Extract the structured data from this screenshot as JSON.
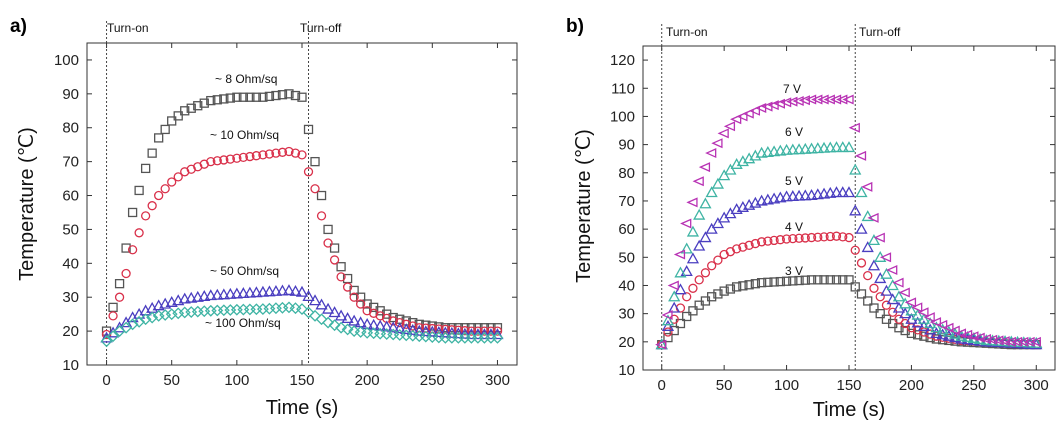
{
  "chart_data": [
    {
      "panel": "a)",
      "type": "scatter",
      "xlabel": "Time (s)",
      "ylabel": "Temperature (℃)",
      "xlim": [
        -15,
        315
      ],
      "ylim": [
        10,
        105
      ],
      "xticks": [
        0,
        50,
        100,
        150,
        200,
        250,
        300
      ],
      "yticks": [
        10,
        20,
        30,
        40,
        50,
        60,
        70,
        80,
        90,
        100
      ],
      "events": [
        {
          "label": "Turn-on",
          "x": 0
        },
        {
          "label": "Turn-off",
          "x": 155
        }
      ],
      "series": [
        {
          "name": "~ 8  Ohm/sq",
          "marker": "square",
          "color": "#555555",
          "x": [
            0,
            10,
            20,
            30,
            40,
            50,
            60,
            80,
            100,
            120,
            140,
            150,
            160,
            170,
            180,
            190,
            200,
            220,
            240,
            260,
            280,
            300
          ],
          "y": [
            20,
            34,
            55,
            68,
            77,
            82,
            85,
            88,
            89,
            89,
            90,
            89,
            70,
            50,
            39,
            32,
            28,
            24,
            22,
            21,
            21,
            21
          ]
        },
        {
          "name": "~ 10 Ohm/sq",
          "marker": "circle",
          "color": "#d9304a",
          "x": [
            0,
            10,
            20,
            30,
            40,
            50,
            60,
            80,
            100,
            120,
            140,
            150,
            160,
            170,
            180,
            190,
            200,
            220,
            240,
            260,
            280,
            300
          ],
          "y": [
            19,
            30,
            44,
            54,
            60,
            64,
            67,
            70,
            71,
            72,
            73,
            72,
            62,
            46,
            36,
            30,
            26,
            23,
            21,
            20.5,
            20,
            20
          ]
        },
        {
          "name": "~ 50 Ohm/sq",
          "marker": "triangle",
          "color": "#4a3ec0",
          "x": [
            0,
            10,
            20,
            30,
            40,
            50,
            60,
            80,
            100,
            120,
            140,
            150,
            160,
            170,
            180,
            190,
            200,
            220,
            240,
            260,
            280,
            300
          ],
          "y": [
            18,
            21,
            24,
            26,
            27.5,
            28.5,
            29.5,
            30.5,
            31,
            31.5,
            32,
            31.5,
            29,
            26.5,
            24.5,
            23,
            22,
            21,
            20,
            19.5,
            19,
            19
          ]
        },
        {
          "name": "~ 100 Ohm/sq",
          "marker": "diamond",
          "color": "#3fb4a4",
          "x": [
            0,
            10,
            20,
            30,
            40,
            50,
            60,
            80,
            100,
            120,
            140,
            150,
            160,
            170,
            180,
            190,
            200,
            220,
            240,
            260,
            280,
            300
          ],
          "y": [
            17,
            20,
            22,
            23.5,
            24.5,
            25,
            25.5,
            26,
            26.3,
            26.5,
            27,
            26.5,
            24.5,
            22.5,
            21,
            20,
            19.5,
            19,
            18.5,
            18,
            18,
            18
          ]
        }
      ]
    },
    {
      "panel": "b)",
      "type": "scatter",
      "xlabel": "Time (s)",
      "ylabel": "Temperature (℃)",
      "xlim": [
        -15,
        315
      ],
      "ylim": [
        10,
        125
      ],
      "xticks": [
        0,
        50,
        100,
        150,
        200,
        250,
        300
      ],
      "yticks": [
        10,
        20,
        30,
        40,
        50,
        60,
        70,
        80,
        90,
        100,
        110,
        120
      ],
      "events": [
        {
          "label": "Turn-on",
          "x": 0
        },
        {
          "label": "Turn-off",
          "x": 155
        }
      ],
      "series": [
        {
          "name": "3 V",
          "marker": "square",
          "color": "#555555",
          "x": [
            0,
            10,
            20,
            30,
            40,
            50,
            60,
            80,
            100,
            120,
            140,
            150,
            160,
            170,
            180,
            190,
            200,
            220,
            240,
            260,
            280,
            300
          ],
          "y": [
            19,
            24,
            29,
            33,
            36,
            38,
            39.5,
            41,
            41.5,
            42,
            42,
            42,
            37,
            32,
            28,
            25,
            23,
            21,
            20,
            19.5,
            19,
            19
          ]
        },
        {
          "name": "4 V",
          "marker": "circle",
          "color": "#d9304a",
          "x": [
            0,
            10,
            20,
            30,
            40,
            50,
            60,
            80,
            100,
            120,
            140,
            150,
            160,
            170,
            180,
            190,
            200,
            220,
            240,
            260,
            280,
            300
          ],
          "y": [
            19,
            28,
            36,
            42,
            47,
            51,
            53,
            55.5,
            56.5,
            57,
            57.5,
            57,
            48,
            39,
            33,
            28,
            25,
            22,
            20.5,
            20,
            19.5,
            19
          ]
        },
        {
          "name": "5 V",
          "marker": "triangle",
          "color": "#4a3ec0",
          "x": [
            0,
            10,
            20,
            30,
            40,
            50,
            60,
            80,
            100,
            120,
            140,
            150,
            160,
            170,
            180,
            190,
            200,
            220,
            240,
            260,
            280,
            300
          ],
          "y": [
            19,
            32,
            45,
            54,
            60,
            64,
            67,
            70,
            71.5,
            72,
            73,
            73,
            60,
            47,
            38,
            32,
            28,
            23,
            21,
            20,
            19.5,
            19
          ]
        },
        {
          "name": "6 V",
          "marker": "triangle",
          "color": "#3fb4a4",
          "x": [
            0,
            10,
            20,
            30,
            40,
            50,
            60,
            80,
            100,
            120,
            140,
            150,
            160,
            170,
            180,
            190,
            200,
            220,
            240,
            260,
            280,
            300
          ],
          "y": [
            19,
            36,
            53,
            65,
            73,
            79,
            83,
            87,
            88,
            88.5,
            89,
            89,
            73,
            56,
            44,
            36,
            31,
            25,
            22,
            20.5,
            20,
            19.5
          ]
        },
        {
          "name": "7 V",
          "marker": "triangle-left",
          "color": "#b832b4",
          "x": [
            0,
            10,
            20,
            30,
            40,
            50,
            60,
            80,
            100,
            120,
            140,
            150,
            160,
            170,
            180,
            190,
            200,
            220,
            240,
            260,
            280,
            300
          ],
          "y": [
            19,
            40,
            62,
            77,
            87,
            94,
            99,
            103,
            105,
            106,
            106,
            106,
            86,
            64,
            50,
            41,
            34,
            27,
            23,
            21,
            20,
            20
          ]
        }
      ]
    }
  ]
}
